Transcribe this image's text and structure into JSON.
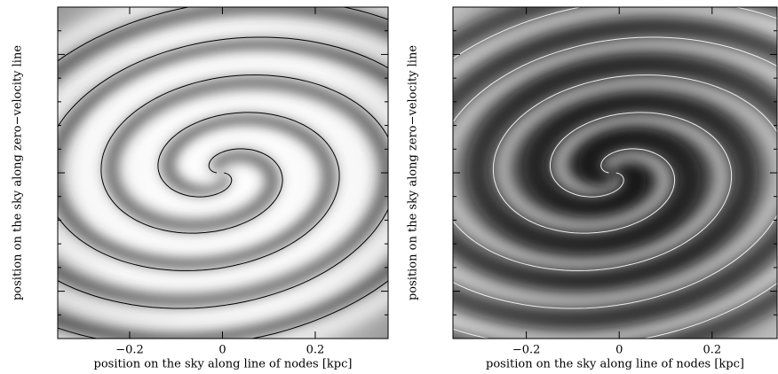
{
  "chart_data": [
    {
      "type": "image",
      "xlabel": "position on the sky along line of nodes [kpc]",
      "ylabel": "position on the sky along zero−velocity line",
      "xlim": [
        -0.355,
        0.357
      ],
      "xticks": [
        {
          "value": -0.2,
          "label": "−0.2"
        },
        0,
        0.2
      ],
      "colormap": "light"
    },
    {
      "type": "image",
      "xlabel": "position on the sky along line of nodes [kpc]",
      "ylabel": "position on the sky along zero−velocity line",
      "xlim": [
        -0.358,
        0.34
      ],
      "xticks": [
        {
          "value": -0.2,
          "label": "−0.2"
        },
        0,
        0.2
      ],
      "colormap": "dark"
    }
  ]
}
